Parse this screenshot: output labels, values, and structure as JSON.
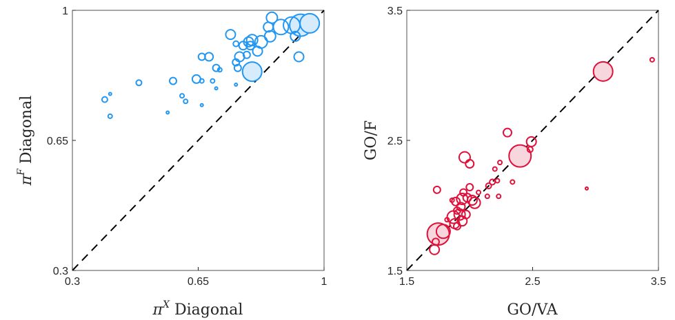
{
  "chart_data": [
    {
      "type": "scatter",
      "xlabel": "Diagonal",
      "xlabel_symbol": "π",
      "xlabel_sup": "X",
      "ylabel": "Diagonal",
      "ylabel_symbol": "π",
      "ylabel_sup": "F",
      "xlim": [
        0.3,
        1.0
      ],
      "ylim": [
        0.3,
        1.0
      ],
      "xticks": [
        "0.3",
        "0.65",
        "1"
      ],
      "yticks": [
        "0.3",
        "0.65",
        "1"
      ],
      "diagonal": true,
      "color": "#2196f3",
      "fill": "#d6ebfb",
      "points": [
        {
          "x": 0.96,
          "y": 0.965,
          "r": 14
        },
        {
          "x": 0.935,
          "y": 0.96,
          "r": 16
        },
        {
          "x": 0.91,
          "y": 0.96,
          "r": 12
        },
        {
          "x": 0.88,
          "y": 0.955,
          "r": 11
        },
        {
          "x": 0.855,
          "y": 0.98,
          "r": 8
        },
        {
          "x": 0.845,
          "y": 0.955,
          "r": 7
        },
        {
          "x": 0.85,
          "y": 0.93,
          "r": 8
        },
        {
          "x": 0.92,
          "y": 0.93,
          "r": 7
        },
        {
          "x": 0.825,
          "y": 0.915,
          "r": 9
        },
        {
          "x": 0.8,
          "y": 0.92,
          "r": 8
        },
        {
          "x": 0.79,
          "y": 0.915,
          "r": 7
        },
        {
          "x": 0.815,
          "y": 0.89,
          "r": 7
        },
        {
          "x": 0.795,
          "y": 0.905,
          "r": 6
        },
        {
          "x": 0.775,
          "y": 0.905,
          "r": 6
        },
        {
          "x": 0.74,
          "y": 0.935,
          "r": 7
        },
        {
          "x": 0.785,
          "y": 0.88,
          "r": 5
        },
        {
          "x": 0.765,
          "y": 0.875,
          "r": 7
        },
        {
          "x": 0.755,
          "y": 0.86,
          "r": 5
        },
        {
          "x": 0.76,
          "y": 0.845,
          "r": 5
        },
        {
          "x": 0.8,
          "y": 0.835,
          "r": 14
        },
        {
          "x": 0.93,
          "y": 0.875,
          "r": 7
        },
        {
          "x": 0.68,
          "y": 0.875,
          "r": 6
        },
        {
          "x": 0.66,
          "y": 0.875,
          "r": 5
        },
        {
          "x": 0.7,
          "y": 0.845,
          "r": 5
        },
        {
          "x": 0.71,
          "y": 0.84,
          "r": 3
        },
        {
          "x": 0.755,
          "y": 0.91,
          "r": 4
        },
        {
          "x": 0.645,
          "y": 0.815,
          "r": 6
        },
        {
          "x": 0.66,
          "y": 0.81,
          "r": 3
        },
        {
          "x": 0.69,
          "y": 0.81,
          "r": 3
        },
        {
          "x": 0.7,
          "y": 0.79,
          "r": 2
        },
        {
          "x": 0.58,
          "y": 0.81,
          "r": 5
        },
        {
          "x": 0.485,
          "y": 0.805,
          "r": 4
        },
        {
          "x": 0.405,
          "y": 0.775,
          "r": 2
        },
        {
          "x": 0.39,
          "y": 0.76,
          "r": 4
        },
        {
          "x": 0.605,
          "y": 0.77,
          "r": 3
        },
        {
          "x": 0.615,
          "y": 0.755,
          "r": 3
        },
        {
          "x": 0.66,
          "y": 0.745,
          "r": 2
        },
        {
          "x": 0.755,
          "y": 0.8,
          "r": 2
        },
        {
          "x": 0.565,
          "y": 0.725,
          "r": 2
        },
        {
          "x": 0.405,
          "y": 0.715,
          "r": 3
        }
      ]
    },
    {
      "type": "scatter",
      "xlabel": "GO/VA",
      "ylabel": "GO/F",
      "xlim": [
        1.5,
        3.5
      ],
      "ylim": [
        1.5,
        3.5
      ],
      "xticks": [
        "1.5",
        "2.5",
        "3.5"
      ],
      "yticks": [
        "1.5",
        "2.5",
        "3.5"
      ],
      "diagonal": true,
      "color": "#e0103a",
      "fill": "#f8d6de",
      "points": [
        {
          "x": 3.06,
          "y": 3.03,
          "r": 14
        },
        {
          "x": 3.45,
          "y": 3.12,
          "r": 3
        },
        {
          "x": 2.49,
          "y": 2.49,
          "r": 7
        },
        {
          "x": 2.48,
          "y": 2.43,
          "r": 4
        },
        {
          "x": 2.4,
          "y": 2.38,
          "r": 16
        },
        {
          "x": 2.3,
          "y": 2.56,
          "r": 6
        },
        {
          "x": 1.96,
          "y": 2.37,
          "r": 8
        },
        {
          "x": 2.0,
          "y": 2.32,
          "r": 6
        },
        {
          "x": 2.24,
          "y": 2.33,
          "r": 3
        },
        {
          "x": 2.2,
          "y": 2.28,
          "r": 3
        },
        {
          "x": 2.18,
          "y": 2.18,
          "r": 4
        },
        {
          "x": 2.15,
          "y": 2.15,
          "r": 4
        },
        {
          "x": 2.22,
          "y": 2.19,
          "r": 3
        },
        {
          "x": 2.34,
          "y": 2.18,
          "r": 3
        },
        {
          "x": 2.93,
          "y": 2.13,
          "r": 2
        },
        {
          "x": 1.74,
          "y": 2.12,
          "r": 5
        },
        {
          "x": 2.0,
          "y": 2.14,
          "r": 5
        },
        {
          "x": 2.07,
          "y": 2.1,
          "r": 3
        },
        {
          "x": 1.95,
          "y": 2.1,
          "r": 5
        },
        {
          "x": 1.94,
          "y": 2.05,
          "r": 8
        },
        {
          "x": 1.98,
          "y": 2.06,
          "r": 6
        },
        {
          "x": 2.02,
          "y": 2.04,
          "r": 7
        },
        {
          "x": 2.14,
          "y": 2.07,
          "r": 3
        },
        {
          "x": 2.23,
          "y": 2.07,
          "r": 3
        },
        {
          "x": 1.89,
          "y": 2.03,
          "r": 6
        },
        {
          "x": 1.86,
          "y": 2.04,
          "r": 3
        },
        {
          "x": 2.04,
          "y": 2.02,
          "r": 8
        },
        {
          "x": 1.93,
          "y": 1.99,
          "r": 6
        },
        {
          "x": 1.9,
          "y": 1.96,
          "r": 5
        },
        {
          "x": 1.92,
          "y": 1.93,
          "r": 8
        },
        {
          "x": 1.97,
          "y": 1.93,
          "r": 6
        },
        {
          "x": 1.87,
          "y": 1.91,
          "r": 9
        },
        {
          "x": 1.82,
          "y": 1.89,
          "r": 3
        },
        {
          "x": 1.94,
          "y": 1.88,
          "r": 7
        },
        {
          "x": 1.88,
          "y": 1.86,
          "r": 7
        },
        {
          "x": 1.9,
          "y": 1.84,
          "r": 5
        },
        {
          "x": 1.79,
          "y": 1.8,
          "r": 10
        },
        {
          "x": 1.75,
          "y": 1.78,
          "r": 16
        },
        {
          "x": 1.73,
          "y": 1.72,
          "r": 5
        },
        {
          "x": 1.72,
          "y": 1.66,
          "r": 7
        }
      ]
    }
  ]
}
